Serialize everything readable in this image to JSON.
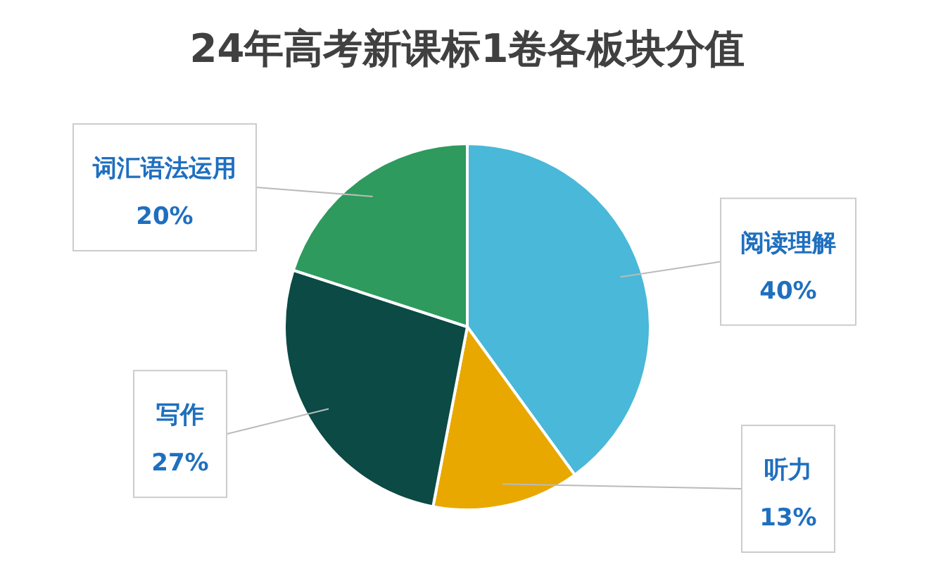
{
  "chart_data": {
    "type": "pie",
    "title": "24年高考新课标1卷各板块分值",
    "categories": [
      "阅读理解",
      "听力",
      "写作",
      "词汇语法运用"
    ],
    "values": [
      40,
      13,
      27,
      20
    ],
    "colors": [
      "#4ab8d8",
      "#e8a800",
      "#0b4a45",
      "#2e9a5e"
    ],
    "value_labels": [
      "40%",
      "13%",
      "27%",
      "20%"
    ]
  }
}
